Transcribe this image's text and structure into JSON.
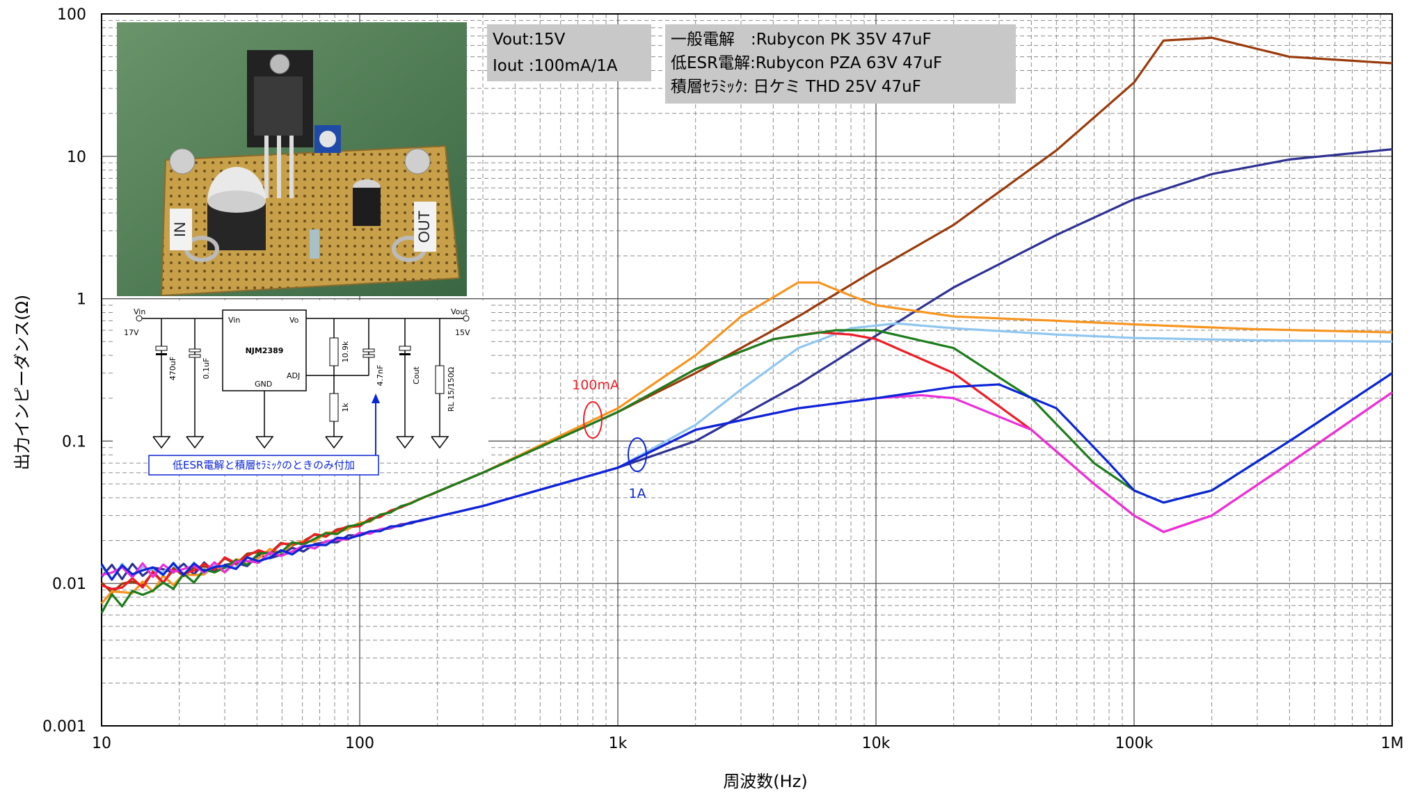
{
  "chart_data": {
    "type": "line",
    "title": "",
    "xlabel": "周波数(Hz)",
    "ylabel": "出力インピーダンス(Ω)",
    "x_scale": "log",
    "y_scale": "log",
    "xlim": [
      10,
      1000000
    ],
    "ylim": [
      0.001,
      100
    ],
    "x_ticks": [
      "10",
      "100",
      "1k",
      "10k",
      "100k",
      "1M"
    ],
    "y_ticks": [
      "100",
      "10",
      "1",
      "0.1",
      "0.01",
      "0.001"
    ],
    "grid": true,
    "series": [
      {
        "color": "#9a3a0a",
        "x": [
          10,
          30,
          100,
          300,
          1000,
          2000,
          5000,
          10000,
          20000,
          50000,
          100000,
          130000,
          200000,
          400000,
          1000000
        ],
        "y": [
          0.009,
          0.014,
          0.026,
          0.06,
          0.16,
          0.3,
          0.75,
          1.6,
          3.3,
          11,
          33,
          65,
          68,
          50,
          45
        ]
      },
      {
        "color": "#2e3192",
        "x": [
          10,
          30,
          100,
          300,
          1000,
          2000,
          5000,
          10000,
          20000,
          50000,
          100000,
          200000,
          400000,
          1000000
        ],
        "y": [
          0.012,
          0.013,
          0.022,
          0.035,
          0.065,
          0.1,
          0.25,
          0.55,
          1.2,
          2.8,
          5,
          7.5,
          9.5,
          11.2
        ]
      },
      {
        "color": "#f7941d",
        "x": [
          10,
          30,
          100,
          300,
          1000,
          2000,
          3000,
          5000,
          6000,
          8000,
          10000,
          20000,
          50000,
          100000,
          300000,
          1000000
        ],
        "y": [
          0.008,
          0.013,
          0.026,
          0.06,
          0.17,
          0.4,
          0.75,
          1.3,
          1.3,
          1.05,
          0.9,
          0.75,
          0.7,
          0.66,
          0.61,
          0.58
        ]
      },
      {
        "color": "#8fc6f0",
        "x": [
          10,
          30,
          100,
          300,
          1000,
          2000,
          3000,
          5000,
          8000,
          12000,
          20000,
          50000,
          100000,
          300000,
          1000000
        ],
        "y": [
          0.012,
          0.013,
          0.022,
          0.035,
          0.065,
          0.13,
          0.23,
          0.45,
          0.62,
          0.67,
          0.62,
          0.56,
          0.53,
          0.51,
          0.5
        ]
      },
      {
        "color": "#ee1c25",
        "x": [
          10,
          30,
          100,
          300,
          1000,
          2000,
          4000,
          6000,
          8000,
          10000,
          20000,
          40000,
          70000,
          100000,
          130000,
          200000,
          400000,
          1000000
        ],
        "y": [
          0.009,
          0.014,
          0.026,
          0.06,
          0.16,
          0.32,
          0.52,
          0.58,
          0.56,
          0.52,
          0.3,
          0.12,
          0.05,
          0.03,
          0.023,
          0.03,
          0.07,
          0.22
        ]
      },
      {
        "color": "#1b7d1b",
        "x": [
          10,
          30,
          100,
          300,
          1000,
          2000,
          4000,
          7000,
          10000,
          20000,
          40000,
          70000,
          100000,
          130000,
          200000,
          400000,
          1000000
        ],
        "y": [
          0.007,
          0.013,
          0.026,
          0.06,
          0.16,
          0.32,
          0.52,
          0.6,
          0.6,
          0.45,
          0.2,
          0.07,
          0.045,
          0.037,
          0.045,
          0.1,
          0.3
        ]
      },
      {
        "color": "#ec2fdb",
        "x": [
          10,
          30,
          100,
          300,
          1000,
          2000,
          5000,
          10000,
          15000,
          20000,
          40000,
          70000,
          100000,
          130000,
          200000,
          400000,
          1000000
        ],
        "y": [
          0.012,
          0.013,
          0.022,
          0.035,
          0.065,
          0.12,
          0.17,
          0.2,
          0.21,
          0.2,
          0.12,
          0.05,
          0.03,
          0.023,
          0.03,
          0.07,
          0.22
        ]
      },
      {
        "color": "#0a25d9",
        "x": [
          10,
          30,
          100,
          300,
          1000,
          2000,
          5000,
          10000,
          20000,
          30000,
          50000,
          80000,
          100000,
          130000,
          200000,
          400000,
          1000000
        ],
        "y": [
          0.012,
          0.013,
          0.022,
          0.035,
          0.065,
          0.12,
          0.17,
          0.2,
          0.24,
          0.25,
          0.17,
          0.07,
          0.045,
          0.037,
          0.045,
          0.1,
          0.3
        ]
      }
    ],
    "annotations": [
      {
        "text": "100mA",
        "color": "#ee1c25"
      },
      {
        "text": "1A",
        "color": "#0a25d9"
      }
    ]
  },
  "conditions_box": {
    "line1": "Vout:15V",
    "line2": "Iout :100mA/1A"
  },
  "capacitor_box": {
    "line1": "一般電解　:Rubycon PK 35V 47uF",
    "line2": "低ESR電解:Rubycon PZA 63V 47uF",
    "line3": "積層ｾﾗﾐｯｸ: 日ケミ THD 25V 47uF"
  },
  "schematic": {
    "vin_label": "Vin",
    "vin_value": "17V",
    "vout_label": "Vout",
    "vout_value": "15V",
    "ic_name": "NJM2389",
    "pin_vin": "Vin",
    "pin_vo": "Vo",
    "pin_gnd": "GND",
    "pin_adj": "ADJ",
    "c_in": "470uF",
    "c_bypass": "0.1uF",
    "r_top": "10.9k",
    "r_bottom": "1k",
    "c_ff": "4.7nF",
    "c_out": "Cout",
    "r_load": "RL 15/150Ω",
    "note": "低ESR電解と積層ｾﾗﾐｯｸのときのみ付加"
  },
  "photo": {
    "in_label": "IN",
    "out_label": "OUT"
  }
}
